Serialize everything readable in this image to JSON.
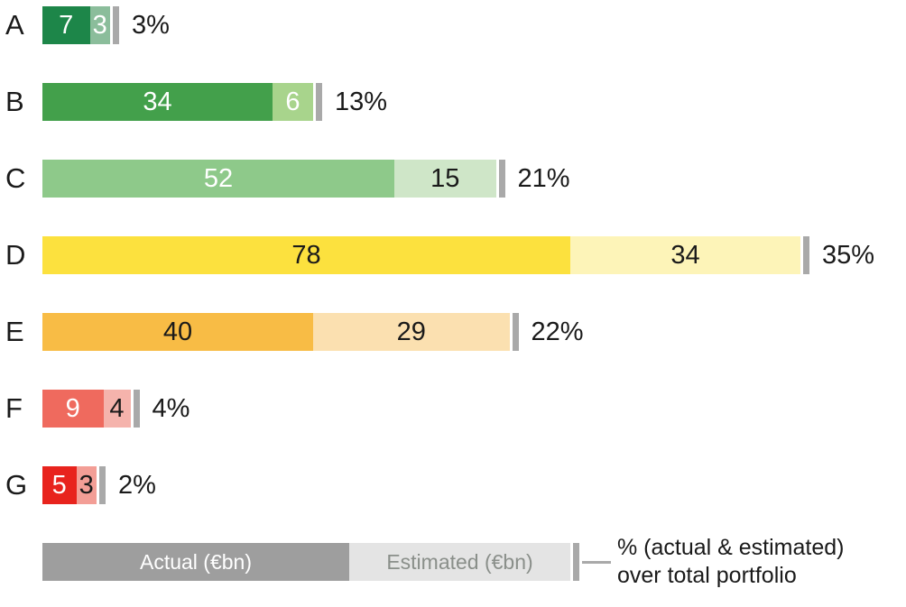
{
  "chart_data": {
    "type": "bar",
    "orientation": "horizontal",
    "stacked": true,
    "grid": false,
    "categories": [
      "A",
      "B",
      "C",
      "D",
      "E",
      "F",
      "G"
    ],
    "series": [
      {
        "name": "Actual (€bn)",
        "values": [
          7,
          34,
          52,
          78,
          40,
          9,
          5
        ]
      },
      {
        "name": "Estimated (€bn)",
        "values": [
          3,
          6,
          15,
          34,
          29,
          4,
          3
        ]
      }
    ],
    "percent_labels": [
      "3%",
      "13%",
      "21%",
      "35%",
      "22%",
      "4%",
      "2%"
    ],
    "colors": {
      "actual": [
        "#1d8649",
        "#43a04b",
        "#8ec98a",
        "#fce13e",
        "#f8bc45",
        "#ef6a5e",
        "#e8231d"
      ],
      "estimated": [
        "#8bbd9b",
        "#a8d48c",
        "#cfe6c8",
        "#fdf4b8",
        "#fbe0b0",
        "#f5b3ac",
        "#f39e96"
      ],
      "value_text_actual": [
        "#ffffff",
        "#ffffff",
        "#ffffff",
        "#1a1a1a",
        "#1a1a1a",
        "#ffffff",
        "#ffffff"
      ],
      "value_text_estimated": [
        "#ffffff",
        "#ffffff",
        "#1a1a1a",
        "#1a1a1a",
        "#1a1a1a",
        "#1a1a1a",
        "#1a1a1a"
      ],
      "tick": "#a9a9a9",
      "legend_actual": "#9e9e9e",
      "legend_estimated": "#e4e4e4",
      "legend_actual_text": "#ffffff",
      "legend_estimated_text": "#8a8f8a",
      "annotation_line": "#a9a9a9"
    },
    "legend": {
      "actual_label": "Actual (€bn)",
      "estimated_label": "Estimated (€bn)",
      "annotation_line1": "% (actual & estimated)",
      "annotation_line2": "over total portfolio"
    }
  }
}
